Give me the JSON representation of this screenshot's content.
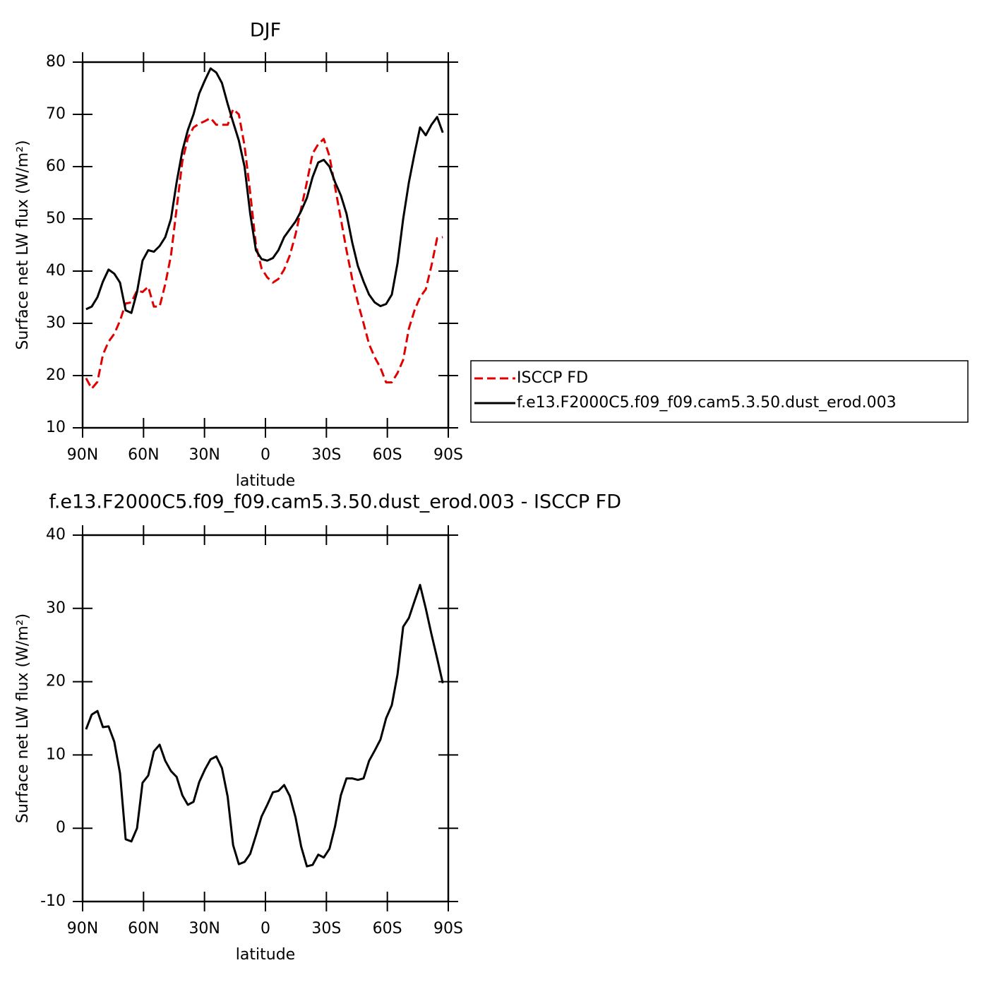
{
  "chart_data": [
    {
      "type": "line",
      "title": "DJF",
      "xlabel": "latitude",
      "ylabel": "Surface net LW flux (W/m²)",
      "xlim": [
        90,
        -90
      ],
      "ylim": [
        10,
        80
      ],
      "xticks": [
        {
          "value": 90,
          "label": "90N"
        },
        {
          "value": 60,
          "label": "60N"
        },
        {
          "value": 30,
          "label": "30N"
        },
        0,
        {
          "value": -30,
          "label": "30S"
        },
        {
          "value": -60,
          "label": "60S"
        },
        {
          "value": -90,
          "label": "90S"
        }
      ],
      "yticks": [
        10,
        20,
        30,
        40,
        50,
        60,
        70,
        80
      ],
      "legend_position": "right",
      "x": [
        88.3,
        85.5,
        82.7,
        80.0,
        77.2,
        74.4,
        71.6,
        68.8,
        66.0,
        63.2,
        60.5,
        57.7,
        54.9,
        52.1,
        49.3,
        46.5,
        43.7,
        40.9,
        38.2,
        35.4,
        32.6,
        29.8,
        27.0,
        24.2,
        21.4,
        18.6,
        15.9,
        13.1,
        10.3,
        7.5,
        4.7,
        1.9,
        -0.9,
        -3.7,
        -6.4,
        -9.2,
        -12.0,
        -14.8,
        -17.6,
        -20.4,
        -23.2,
        -26.0,
        -28.7,
        -31.5,
        -34.3,
        -37.1,
        -39.9,
        -42.7,
        -45.5,
        -48.3,
        -51.0,
        -53.8,
        -56.6,
        -59.4,
        -62.2,
        -65.0,
        -67.8,
        -70.6,
        -73.4,
        -76.1,
        -78.9,
        -81.7,
        -84.5,
        -87.3
      ],
      "series": [
        {
          "name": "ISCCP FD",
          "color": "#e00000",
          "dashed": true,
          "values": [
            19.5,
            17.5,
            18.8,
            24,
            26.5,
            28,
            30.5,
            33.8,
            34,
            36.3,
            36,
            37,
            33.2,
            33.2,
            37.5,
            43,
            52,
            61,
            65.5,
            67.5,
            68.2,
            68.7,
            69.3,
            68,
            68,
            68,
            71,
            70,
            64,
            55,
            45,
            40.5,
            38.8,
            37.8,
            38.5,
            40.3,
            43,
            47,
            52,
            57,
            62.5,
            64.3,
            65.3,
            62,
            56,
            50,
            44,
            38.5,
            34,
            30,
            26,
            23.5,
            21.5,
            18.7,
            18.7,
            20.5,
            23,
            29,
            32.5,
            35,
            36.5,
            41,
            46.3,
            46.5
          ]
        },
        {
          "name": "f.e13.F2000C5.f09_f09.cam5.3.50.dust_erod.003",
          "color": "#000000",
          "dashed": false,
          "values": [
            32.7,
            33.2,
            35,
            38,
            40.3,
            39.5,
            37.8,
            32.5,
            32,
            36,
            42,
            44,
            43.7,
            44.8,
            46.5,
            50,
            57,
            63,
            67,
            70,
            74,
            76.5,
            78.8,
            78,
            76,
            72,
            68.5,
            65,
            60,
            51,
            44,
            42.3,
            42,
            42.5,
            44,
            46.5,
            48,
            49.5,
            51.5,
            54,
            58,
            60.8,
            61.3,
            60,
            57,
            54.5,
            51,
            45.5,
            41,
            38,
            35.5,
            34,
            33.3,
            33.7,
            35.5,
            41.5,
            50,
            57,
            62.5,
            67.5,
            66,
            68,
            69.5,
            66.5
          ]
        }
      ]
    },
    {
      "type": "line",
      "title": "f.e13.F2000C5.f09_f09.cam5.3.50.dust_erod.003 - ISCCP FD",
      "xlabel": "latitude",
      "ylabel": "Surface net LW flux (W/m²)",
      "xlim": [
        90,
        -90
      ],
      "ylim": [
        -10,
        40
      ],
      "xticks": [
        {
          "value": 90,
          "label": "90N"
        },
        {
          "value": 60,
          "label": "60N"
        },
        {
          "value": 30,
          "label": "30N"
        },
        0,
        {
          "value": -30,
          "label": "30S"
        },
        {
          "value": -60,
          "label": "60S"
        },
        {
          "value": -90,
          "label": "90S"
        }
      ],
      "yticks": [
        -10,
        0,
        10,
        20,
        30,
        40
      ],
      "x": [
        88.3,
        85.5,
        82.7,
        80.0,
        77.2,
        74.4,
        71.6,
        68.8,
        66.0,
        63.2,
        60.5,
        57.7,
        54.9,
        52.1,
        49.3,
        46.5,
        43.7,
        40.9,
        38.2,
        35.4,
        32.6,
        29.8,
        27.0,
        24.2,
        21.4,
        18.6,
        15.9,
        13.1,
        10.3,
        7.5,
        4.7,
        1.9,
        -0.9,
        -3.7,
        -6.4,
        -9.2,
        -12.0,
        -14.8,
        -17.6,
        -20.4,
        -23.2,
        -26.0,
        -28.7,
        -31.5,
        -34.3,
        -37.1,
        -39.9,
        -42.7,
        -45.5,
        -48.3,
        -51.0,
        -53.8,
        -56.6,
        -59.4,
        -62.2,
        -65.0,
        -67.8,
        -70.6,
        -73.4,
        -76.1,
        -78.9,
        -81.7,
        -84.5,
        -87.3
      ],
      "series": [
        {
          "color": "#000000",
          "dashed": false,
          "values": [
            13.5,
            15.5,
            16,
            13.8,
            13.9,
            11.8,
            7.5,
            -1.5,
            -1.8,
            0,
            6.2,
            7.2,
            10.5,
            11.4,
            9.2,
            7.8,
            7,
            4.5,
            3.2,
            3.6,
            6.3,
            8,
            9.4,
            9.8,
            8.2,
            4.3,
            -2.3,
            -4.9,
            -4.6,
            -3.5,
            -1,
            1.6,
            3.2,
            4.9,
            5.1,
            5.9,
            4.4,
            1.5,
            -2.5,
            -5.2,
            -5,
            -3.6,
            -4,
            -2.8,
            0.3,
            4.5,
            6.8,
            6.8,
            6.6,
            6.8,
            9.2,
            10.6,
            12.1,
            15,
            16.8,
            21,
            27.5,
            28.7,
            31,
            33.2,
            30,
            26.5,
            23.2,
            19.8
          ]
        }
      ]
    }
  ]
}
